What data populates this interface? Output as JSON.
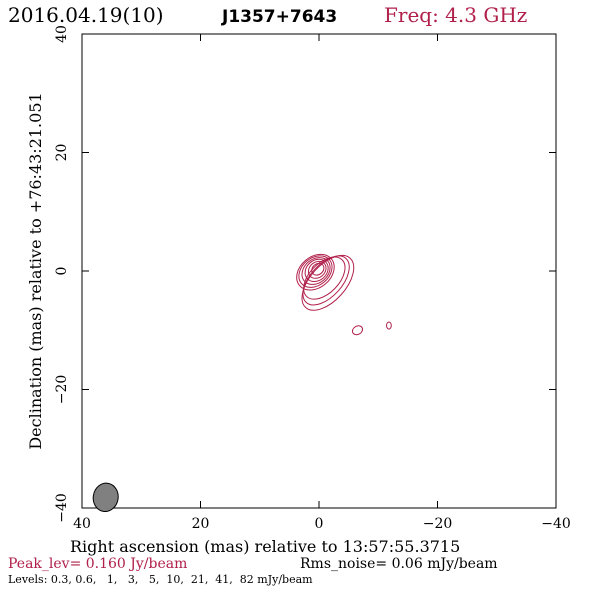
{
  "header": {
    "date": "2016.04.19(10)",
    "source": "J1357+7643",
    "freq": "Freq: 4.3 GHz"
  },
  "chart_data": {
    "type": "contour",
    "xlabel": "Right ascension (mas) relative to 13:57:55.3715",
    "ylabel": "Declination (mas) relative to +76:43:21.051",
    "xlim": [
      40,
      -40
    ],
    "ylim": [
      -40,
      40
    ],
    "xticks": [
      40,
      20,
      0,
      -20,
      -40
    ],
    "yticks": [
      -40,
      -20,
      0,
      20,
      40
    ],
    "xtick_labels": [
      "40",
      "20",
      "0",
      "−20",
      "−40"
    ],
    "ytick_labels": [
      "−40",
      "−20",
      "0",
      "20",
      "40"
    ],
    "contour_color": "#b0204a",
    "beam": {
      "x": 36,
      "y": -38.2,
      "major_mas": 2.4,
      "minor_mas": 2.1,
      "pa_deg": 10,
      "fill": "#808080"
    },
    "contours": [
      {
        "cx": 0.6,
        "cy": -0.2,
        "rx": 3.5,
        "ry": 2.6,
        "rot": -40
      },
      {
        "cx": 0.6,
        "cy": -0.1,
        "rx": 3.1,
        "ry": 2.3,
        "rot": -40
      },
      {
        "cx": 0.5,
        "cy": 0.0,
        "rx": 2.6,
        "ry": 2.0,
        "rot": -40
      },
      {
        "cx": 0.4,
        "cy": 0.1,
        "rx": 2.1,
        "ry": 1.7,
        "rot": -40
      },
      {
        "cx": 0.3,
        "cy": 0.2,
        "rx": 1.6,
        "ry": 1.3,
        "rot": -40
      },
      {
        "cx": 0.2,
        "cy": 0.3,
        "rx": 1.1,
        "ry": 0.9,
        "rot": -40
      },
      {
        "cx": -1.5,
        "cy": -2.0,
        "rx": 5.6,
        "ry": 3.0,
        "rot": -48
      },
      {
        "cx": -1.2,
        "cy": -1.6,
        "rx": 5.0,
        "ry": 2.7,
        "rot": -48
      },
      {
        "cx": -0.9,
        "cy": -1.2,
        "rx": 4.3,
        "ry": 2.5,
        "rot": -46
      },
      {
        "cx": -6.5,
        "cy": -10.0,
        "rx": 0.9,
        "ry": 0.7,
        "rot": -30
      },
      {
        "cx": -11.8,
        "cy": -9.2,
        "rx": 0.4,
        "ry": 0.6,
        "rot": 0
      }
    ]
  },
  "footer": {
    "peak": "Peak_lev=  0.160 Jy/beam",
    "rms": "Rms_noise= 0.06 mJy/beam",
    "levels": "Levels: 0.3, 0.6,   1,   3,   5,  10,  21,  41,  82 mJy/beam"
  }
}
